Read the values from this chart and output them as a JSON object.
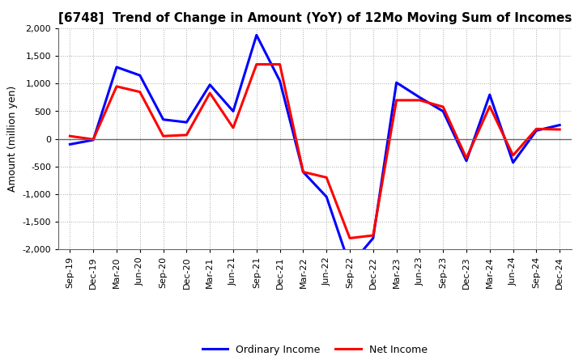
{
  "title": "[6748]  Trend of Change in Amount (YoY) of 12Mo Moving Sum of Incomes",
  "ylabel": "Amount (million yen)",
  "ylim": [
    -2000,
    2000
  ],
  "yticks": [
    -2000,
    -1500,
    -1000,
    -500,
    0,
    500,
    1000,
    1500,
    2000
  ],
  "x_labels": [
    "Sep-19",
    "Dec-19",
    "Mar-20",
    "Jun-20",
    "Sep-20",
    "Dec-20",
    "Mar-21",
    "Jun-21",
    "Sep-21",
    "Dec-21",
    "Mar-22",
    "Jun-22",
    "Sep-22",
    "Dec-22",
    "Mar-23",
    "Jun-23",
    "Sep-23",
    "Dec-23",
    "Mar-24",
    "Jun-24",
    "Sep-24",
    "Dec-24"
  ],
  "ordinary_income": [
    -100,
    -20,
    1300,
    1150,
    350,
    300,
    980,
    500,
    1880,
    1050,
    -600,
    -1050,
    -2300,
    -1800,
    1020,
    750,
    500,
    -400,
    800,
    -430,
    150,
    250
  ],
  "net_income": [
    50,
    -10,
    950,
    850,
    50,
    70,
    830,
    200,
    1350,
    1350,
    -600,
    -700,
    -1800,
    -1750,
    700,
    700,
    580,
    -350,
    590,
    -300,
    180,
    170
  ],
  "ordinary_color": "#0000ff",
  "net_color": "#ff0000",
  "line_width": 2.2,
  "background_color": "#ffffff",
  "grid_color": "#aaaaaa",
  "grid_style": "dotted",
  "legend_labels": [
    "Ordinary Income",
    "Net Income"
  ],
  "title_fontsize": 11,
  "ylabel_fontsize": 9,
  "tick_fontsize": 8
}
